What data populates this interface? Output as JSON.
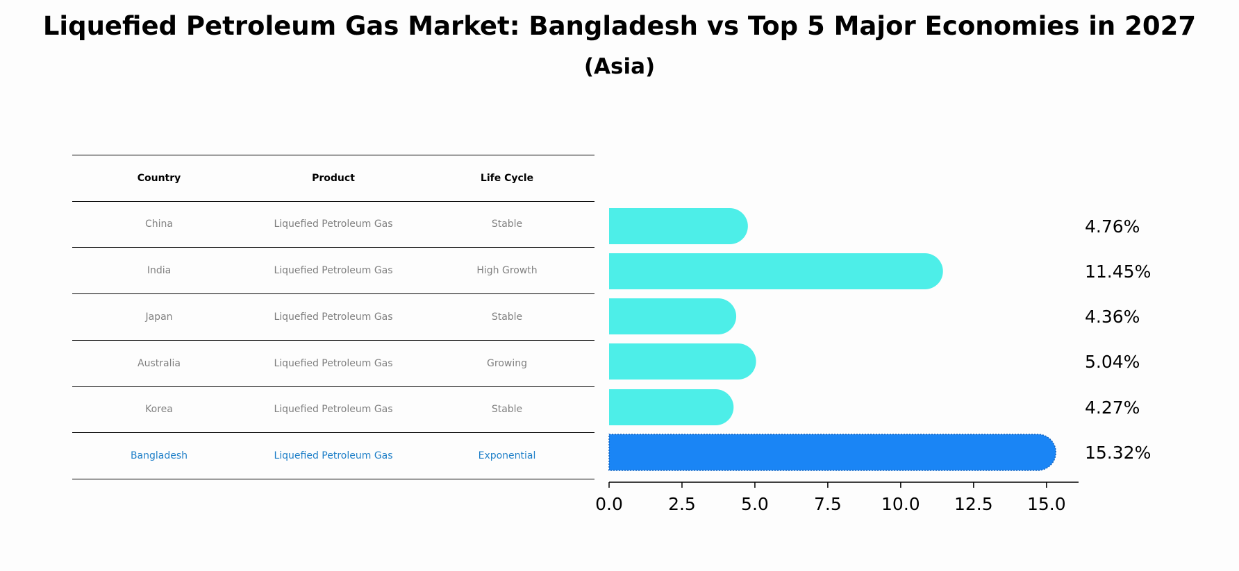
{
  "title": "Liquefied Petroleum Gas Market: Bangladesh vs Top 5 Major Economies in 2027",
  "subtitle": "(Asia)",
  "table": {
    "headers": [
      "Country",
      "Product",
      "Life Cycle"
    ],
    "rows": [
      [
        "China",
        "Liquefied Petroleum Gas",
        "Stable"
      ],
      [
        "India",
        "Liquefied Petroleum Gas",
        "High Growth"
      ],
      [
        "Japan",
        "Liquefied Petroleum Gas",
        "Stable"
      ],
      [
        "Australia",
        "Liquefied Petroleum Gas",
        "Growing"
      ],
      [
        "Korea",
        "Liquefied Petroleum Gas",
        "Stable"
      ],
      [
        "Bangladesh",
        "Liquefied Petroleum Gas",
        "Exponential"
      ]
    ],
    "highlight_row": 5
  },
  "colors": {
    "bar": "#4deee8",
    "highlight_bar": "#1a85f5",
    "highlight_text": "#1e7fc8",
    "body_text": "#808080"
  },
  "chart_data": {
    "type": "bar",
    "orientation": "horizontal",
    "categories": [
      "China",
      "India",
      "Japan",
      "Australia",
      "Korea",
      "Bangladesh"
    ],
    "values": [
      4.76,
      11.45,
      4.36,
      5.04,
      4.27,
      15.32
    ],
    "value_labels": [
      "4.76%",
      "11.45%",
      "4.36%",
      "5.04%",
      "4.27%",
      "15.32%"
    ],
    "xlim": [
      0,
      16.1
    ],
    "xticks": [
      0,
      2.5,
      5,
      7.5,
      10,
      12.5,
      15
    ],
    "xtick_labels": [
      "0.0",
      "2.5",
      "5.0",
      "7.5",
      "10.0",
      "12.5",
      "15.0"
    ],
    "highlight_index": 5
  }
}
